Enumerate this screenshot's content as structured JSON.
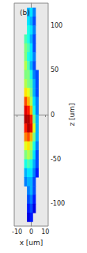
{
  "chart_data": {
    "type": "heatmap",
    "title": "(b)",
    "x_label": "x [um]",
    "y_label": "z [um]",
    "x": [
      -4,
      -2,
      0,
      2,
      4
    ],
    "y": [
      115,
      105,
      95,
      85,
      75,
      65,
      55,
      45,
      35,
      25,
      15,
      5,
      -5,
      -15,
      -25,
      -35,
      -45,
      -55,
      -65,
      -75,
      -85,
      -95,
      -105,
      -115
    ],
    "cells": [
      [
        null,
        0.3,
        0.35,
        0.25,
        null
      ],
      [
        null,
        0.35,
        0.3,
        0.2,
        null
      ],
      [
        null,
        0.4,
        0.35,
        0.25,
        null
      ],
      [
        0.45,
        0.4,
        0.3,
        0.2,
        null
      ],
      [
        0.5,
        0.45,
        0.35,
        0.2,
        null
      ],
      [
        0.5,
        0.4,
        0.35,
        0.25,
        null
      ],
      [
        0.55,
        0.45,
        0.3,
        0.2,
        null
      ],
      [
        0.5,
        0.5,
        0.4,
        0.25,
        0.2
      ],
      [
        0.55,
        0.5,
        0.45,
        0.3,
        0.2
      ],
      [
        0.65,
        0.6,
        0.5,
        0.3,
        0.2
      ],
      [
        0.8,
        0.7,
        0.55,
        0.35,
        0.25
      ],
      [
        0.9,
        0.85,
        0.7,
        0.4,
        0.25
      ],
      [
        0.95,
        0.95,
        0.85,
        0.5,
        0.3
      ],
      [
        0.85,
        0.95,
        0.9,
        0.6,
        0.3
      ],
      [
        0.75,
        0.8,
        0.7,
        0.5,
        0.3
      ],
      [
        0.6,
        0.65,
        0.55,
        0.4,
        0.25
      ],
      [
        0.5,
        0.55,
        0.5,
        0.35,
        0.2
      ],
      [
        0.4,
        0.45,
        0.4,
        0.3,
        0.2
      ],
      [
        0.3,
        0.35,
        0.35,
        0.25,
        0.15
      ],
      [
        0.25,
        0.3,
        0.3,
        0.2,
        null
      ],
      [
        null,
        0.25,
        0.3,
        0.2,
        null
      ],
      [
        null,
        0.2,
        0.25,
        0.15,
        null
      ],
      [
        null,
        0.15,
        0.2,
        0.1,
        null
      ],
      [
        null,
        0.1,
        0.15,
        null,
        null
      ]
    ],
    "clim": [
      0,
      1
    ],
    "xlim": [
      -12,
      12
    ],
    "xticks": [
      -10,
      0,
      10
    ],
    "ylim": [
      -125,
      125
    ],
    "yticks": [
      -100,
      -50,
      0,
      50,
      100
    ]
  }
}
